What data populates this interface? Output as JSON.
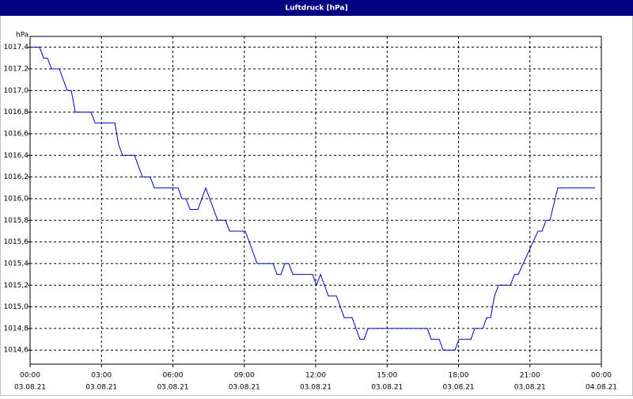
{
  "chart_data": {
    "type": "line",
    "title": "Luftdruck [hPa]",
    "y_label": "hPa",
    "x": [
      0,
      0.4,
      0.57,
      0.73,
      0.9,
      1.23,
      1.56,
      1.73,
      1.9,
      2.56,
      2.73,
      3.56,
      3.72,
      3.89,
      4.39,
      4.72,
      5.05,
      5.22,
      6.22,
      6.38,
      6.55,
      6.72,
      7.05,
      7.38,
      7.88,
      8.21,
      8.38,
      9.04,
      9.54,
      10.21,
      10.37,
      10.54,
      10.7,
      10.87,
      11.04,
      11.87,
      12.03,
      12.2,
      12.53,
      12.87,
      13.2,
      13.53,
      13.86,
      14.03,
      14.2,
      16.69,
      16.85,
      17.19,
      17.35,
      17.85,
      18.02,
      18.52,
      18.68,
      19.02,
      19.18,
      19.35,
      19.51,
      19.68,
      20.18,
      20.35,
      20.51,
      21.34,
      21.51,
      21.68,
      21.84,
      22.17,
      23.74
    ],
    "series": [
      {
        "name": "Luftdruck",
        "color": "#0000c0",
        "values": [
          1017.4,
          1017.4,
          1017.3,
          1017.3,
          1017.2,
          1017.2,
          1017.0,
          1017.0,
          1016.8,
          1016.8,
          1016.7,
          1016.7,
          1016.5,
          1016.4,
          1016.4,
          1016.2,
          1016.2,
          1016.1,
          1016.1,
          1016.0,
          1016.0,
          1015.9,
          1015.9,
          1016.1,
          1015.8,
          1015.8,
          1015.7,
          1015.7,
          1015.4,
          1015.4,
          1015.3,
          1015.3,
          1015.4,
          1015.4,
          1015.3,
          1015.3,
          1015.2,
          1015.3,
          1015.1,
          1015.1,
          1014.9,
          1014.9,
          1014.7,
          1014.7,
          1014.8,
          1014.8,
          1014.7,
          1014.7,
          1014.6,
          1014.6,
          1014.7,
          1014.7,
          1014.8,
          1014.8,
          1014.9,
          1014.9,
          1015.1,
          1015.2,
          1015.2,
          1015.3,
          1015.3,
          1015.7,
          1015.7,
          1015.8,
          1015.8,
          1016.1,
          1016.1
        ]
      }
    ],
    "xlim": [
      0,
      24
    ],
    "xticks": [
      {
        "value": 0,
        "label": "00:00"
      },
      {
        "value": 3,
        "label": "03:00"
      },
      {
        "value": 6,
        "label": "06:00"
      },
      {
        "value": 9,
        "label": "09:00"
      },
      {
        "value": 12,
        "label": "12:00"
      },
      {
        "value": 15,
        "label": "15:00"
      },
      {
        "value": 18,
        "label": "18:00"
      },
      {
        "value": 21,
        "label": "21:00"
      },
      {
        "value": 24,
        "label": "00:00"
      }
    ],
    "xtick_dates": [
      "03.08.21",
      "03.08.21",
      "03.08.21",
      "03.08.21",
      "03.08.21",
      "03.08.21",
      "03.08.21",
      "03.08.21",
      "04.08.21"
    ],
    "ylim": [
      1014.47,
      1017.5
    ],
    "yticks": [
      {
        "value": 1014.6,
        "label": "1014,6"
      },
      {
        "value": 1014.8,
        "label": "1014,8"
      },
      {
        "value": 1015.0,
        "label": "1015,0"
      },
      {
        "value": 1015.2,
        "label": "1015,2"
      },
      {
        "value": 1015.4,
        "label": "1015,4"
      },
      {
        "value": 1015.6,
        "label": "1015,6"
      },
      {
        "value": 1015.8,
        "label": "1015,8"
      },
      {
        "value": 1016.0,
        "label": "1016,0"
      },
      {
        "value": 1016.2,
        "label": "1016,2"
      },
      {
        "value": 1016.4,
        "label": "1016,4"
      },
      {
        "value": 1016.6,
        "label": "1016,6"
      },
      {
        "value": 1016.8,
        "label": "1016,8"
      },
      {
        "value": 1017.0,
        "label": "1017,0"
      },
      {
        "value": 1017.2,
        "label": "1017,2"
      },
      {
        "value": 1017.4,
        "label": "1017,4"
      }
    ],
    "grid": true
  }
}
